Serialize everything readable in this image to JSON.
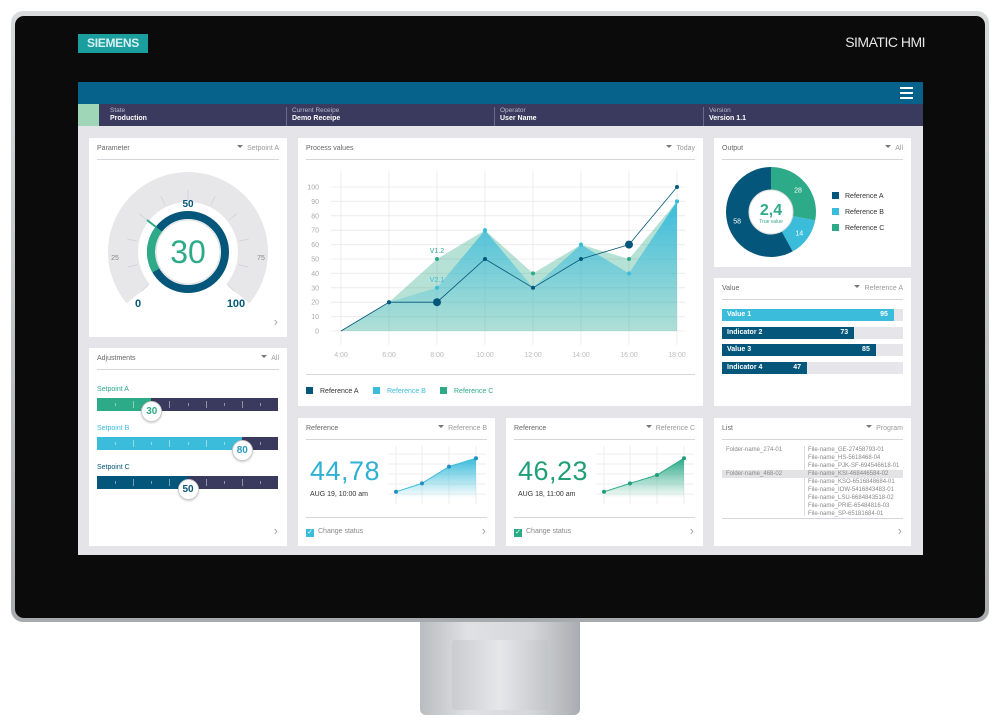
{
  "device": {
    "logo": "SIEMENS",
    "brand": "SIMATIC HMI"
  },
  "status": [
    {
      "label": "State",
      "value": "Production"
    },
    {
      "label": "Current Receipe",
      "value": "Demo Receipe"
    },
    {
      "label": "Operator",
      "value": "User Name"
    },
    {
      "label": "Version",
      "value": "Version 1.1"
    }
  ],
  "colors": {
    "dark_blue": "#04577a",
    "light_blue": "#3bbcdb",
    "green": "#2daa87",
    "navy": "#3a3a5e",
    "topbar": "#06628a"
  },
  "parameter": {
    "title": "Parameter",
    "filter": "Setpoint A",
    "value": "30",
    "ticks": [
      "0",
      "25",
      "50",
      "75",
      "100"
    ],
    "level": 30
  },
  "adjustments": {
    "title": "Adjustments",
    "filter": "All",
    "sliders": [
      {
        "label": "Setpoint A",
        "value": "30",
        "level": 30,
        "color": "#2daa87"
      },
      {
        "label": "Setpoint B",
        "value": "80",
        "level": 80,
        "color": "#3bbcdb"
      },
      {
        "label": "Setpoint C",
        "value": "50",
        "level": 50,
        "color": "#04577a"
      }
    ]
  },
  "process": {
    "title": "Process values",
    "filter": "Today"
  },
  "chart_data": {
    "type": "area",
    "x": [
      "4:00",
      "6:00",
      "8:00",
      "10:00",
      "12:00",
      "14:00",
      "16:00",
      "18:00"
    ],
    "ylim": [
      0,
      100
    ],
    "yticks": [
      "0",
      "10",
      "20",
      "30",
      "40",
      "50",
      "60",
      "70",
      "80",
      "90",
      "100"
    ],
    "grid": true,
    "legend": "bottom-left",
    "series": [
      {
        "name": "Reference A",
        "color": "#04577a",
        "values": [
          0,
          20,
          20,
          50,
          30,
          50,
          60,
          100
        ]
      },
      {
        "name": "Reference B",
        "color": "#3bbcdb",
        "values": [
          0,
          20,
          30,
          70,
          30,
          60,
          40,
          90
        ]
      },
      {
        "name": "Reference C",
        "color": "#2daa87",
        "values": [
          0,
          20,
          50,
          70,
          40,
          60,
          50,
          90
        ]
      }
    ],
    "annotations": [
      {
        "text": "V1.2",
        "series": "Reference C",
        "x": "8:00"
      },
      {
        "text": "V2.1",
        "series": "Reference B",
        "x": "8:00"
      }
    ]
  },
  "output": {
    "title": "Output",
    "filter": "All",
    "center_value": "2,4",
    "center_label": "True value",
    "slices": [
      {
        "name": "Reference C",
        "value": 28,
        "color": "#2daa87"
      },
      {
        "name": "Reference B",
        "value": 14,
        "color": "#3bbcdb"
      },
      {
        "name": "Reference A",
        "value": 58,
        "color": "#04577a"
      }
    ],
    "legend": [
      "Reference A",
      "Reference B",
      "Reference C"
    ]
  },
  "value": {
    "title": "Value",
    "filter": "Reference A",
    "bars": [
      {
        "label": "Value 1",
        "value": "95",
        "level": 95,
        "color": "#3bbcdb"
      },
      {
        "label": "Indicator 2",
        "value": "73",
        "level": 73,
        "color": "#04577a"
      },
      {
        "label": "Value 3",
        "value": "85",
        "level": 85,
        "color": "#04577a"
      },
      {
        "label": "Indicator 4",
        "value": "47",
        "level": 47,
        "color": "#04577a"
      }
    ]
  },
  "refB": {
    "title": "Reference",
    "filter": "Reference B",
    "value": "44,78",
    "date": "AUG 19, 10:00 am",
    "check": "Change status",
    "checked": true,
    "spark": [
      10,
      30,
      70,
      90
    ],
    "color": "#3bbcdb"
  },
  "refC": {
    "title": "Reference",
    "filter": "Reference C",
    "value": "46,23",
    "date": "AUG 18, 11:00 am",
    "check": "Change status",
    "checked": true,
    "spark": [
      10,
      30,
      50,
      90
    ],
    "color": "#2daa87"
  },
  "list": {
    "title": "List",
    "filter": "Program",
    "folders": [
      "Folder-name_274-01",
      "Folder-name_468-02"
    ],
    "selected_folder": 1,
    "files": [
      "File-name_GE-27458793-01",
      "File-name_HS-5618468-04",
      "File-name_PJK-SF-694546618-01",
      "File-name_KSI-468446584-02",
      "File-name_KSO-6516848684-01",
      "File-name_IOW-5416843483-01",
      "File-name_LSU-6684843518-02",
      "File-name_PRIE-65484816-03",
      "File-name_SP-65181684-01"
    ],
    "selected_file": 3
  }
}
